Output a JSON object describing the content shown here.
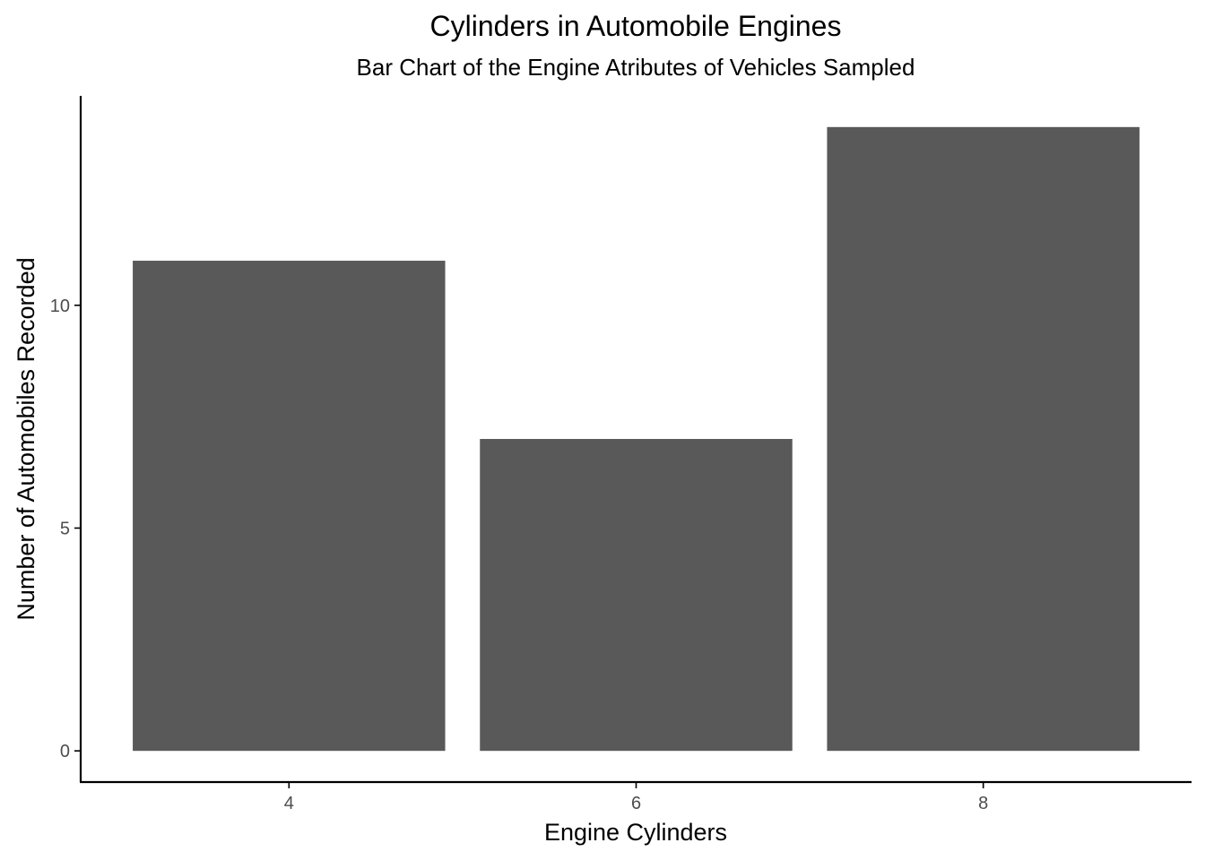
{
  "chart_data": {
    "type": "bar",
    "title": "Cylinders in Automobile Engines",
    "subtitle": "Bar Chart of the Engine Atributes of Vehicles Sampled",
    "xlabel": "Engine Cylinders",
    "ylabel": "Number of Automobiles Recorded",
    "categories": [
      "4",
      "6",
      "8"
    ],
    "values": [
      11,
      7,
      14
    ],
    "ylim": [
      -0.7,
      14.7
    ],
    "y_ticks": [
      0,
      5,
      10
    ],
    "grid": false,
    "legend": "none",
    "colors": {
      "bar": "#595959",
      "axis": "#000000",
      "tick_label": "#4d4d4d",
      "text": "#000000",
      "background": "#ffffff"
    }
  }
}
